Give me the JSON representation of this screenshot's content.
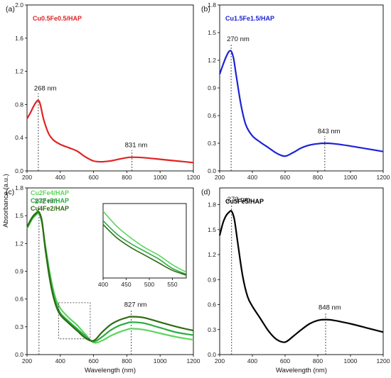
{
  "chart_data": [
    {
      "type": "line",
      "panel": "(a)",
      "xlim": [
        200,
        1200
      ],
      "ylim": [
        0,
        2.0
      ],
      "xticks": [
        200,
        400,
        600,
        800,
        1000,
        1200
      ],
      "yticks": [
        0.0,
        0.4,
        0.8,
        1.2,
        1.6,
        2.0
      ],
      "ytick_labels": [
        "0.0",
        "0.4",
        "0.8",
        "1.2",
        "1.6",
        "2.0"
      ],
      "series": [
        {
          "name": "Cu0.5Fe0.5/HAP",
          "color": "#e32222",
          "x": [
            200,
            220,
            240,
            255,
            268,
            280,
            300,
            330,
            360,
            400,
            450,
            500,
            550,
            600,
            650,
            700,
            750,
            800,
            831,
            900,
            1000,
            1100,
            1200
          ],
          "y": [
            0.63,
            0.7,
            0.78,
            0.83,
            0.85,
            0.8,
            0.62,
            0.45,
            0.37,
            0.32,
            0.28,
            0.24,
            0.17,
            0.12,
            0.11,
            0.12,
            0.14,
            0.16,
            0.165,
            0.16,
            0.14,
            0.12,
            0.1
          ]
        }
      ],
      "annotations": [
        {
          "text": "268 nm",
          "x": 268,
          "y": 0.85
        },
        {
          "text": "831 nm",
          "x": 831,
          "y": 0.165
        }
      ]
    },
    {
      "type": "line",
      "panel": "(b)",
      "xlim": [
        200,
        1200
      ],
      "ylim": [
        0,
        1.8
      ],
      "xticks": [
        200,
        400,
        600,
        800,
        1000,
        1200
      ],
      "yticks": [
        0.0,
        0.3,
        0.6,
        0.9,
        1.2,
        1.5,
        1.8
      ],
      "ytick_labels": [
        "0.0",
        "0.3",
        "0.6",
        "0.9",
        "1.2",
        "1.5",
        "1.8"
      ],
      "series": [
        {
          "name": "Cu1.5Fe1.5/HAP",
          "color": "#1c22d6",
          "x": [
            200,
            220,
            240,
            255,
            270,
            285,
            300,
            330,
            360,
            400,
            450,
            500,
            550,
            600,
            650,
            700,
            750,
            800,
            843,
            900,
            1000,
            1100,
            1200
          ],
          "y": [
            1.05,
            1.15,
            1.24,
            1.29,
            1.3,
            1.22,
            1.05,
            0.72,
            0.5,
            0.38,
            0.31,
            0.25,
            0.19,
            0.16,
            0.2,
            0.25,
            0.28,
            0.295,
            0.3,
            0.295,
            0.27,
            0.24,
            0.21
          ]
        }
      ],
      "annotations": [
        {
          "text": "270 nm",
          "x": 270,
          "y": 1.3
        },
        {
          "text": "843 nm",
          "x": 843,
          "y": 0.3
        }
      ]
    },
    {
      "type": "line",
      "panel": "(c)",
      "xlim": [
        200,
        1200
      ],
      "ylim": [
        0,
        1.8
      ],
      "xticks": [
        200,
        400,
        600,
        800,
        1000,
        1200
      ],
      "yticks": [
        0.0,
        0.3,
        0.6,
        0.9,
        1.2,
        1.5,
        1.8
      ],
      "ytick_labels": [
        "0.0",
        "0.3",
        "0.6",
        "0.9",
        "1.2",
        "1.5",
        "1.8"
      ],
      "xlabel": "Wavelength (nm)",
      "series": [
        {
          "name": "Cu2Fe4/HAP",
          "color": "#5cd65c",
          "x": [
            200,
            230,
            255,
            272,
            290,
            310,
            340,
            370,
            400,
            450,
            500,
            550,
            600,
            650,
            700,
            750,
            800,
            827,
            900,
            1000,
            1100,
            1200
          ],
          "y": [
            1.36,
            1.46,
            1.51,
            1.52,
            1.42,
            1.18,
            0.85,
            0.62,
            0.5,
            0.4,
            0.32,
            0.22,
            0.13,
            0.15,
            0.2,
            0.24,
            0.27,
            0.28,
            0.27,
            0.23,
            0.19,
            0.16
          ]
        },
        {
          "name": "Cu3Fe3/HAP",
          "color": "#2bab42",
          "x": [
            200,
            230,
            255,
            272,
            290,
            310,
            340,
            370,
            400,
            450,
            500,
            550,
            600,
            650,
            700,
            750,
            800,
            827,
            900,
            1000,
            1100,
            1200
          ],
          "y": [
            1.37,
            1.47,
            1.52,
            1.53,
            1.43,
            1.16,
            0.82,
            0.58,
            0.45,
            0.36,
            0.28,
            0.2,
            0.14,
            0.19,
            0.26,
            0.31,
            0.34,
            0.35,
            0.34,
            0.29,
            0.24,
            0.21
          ]
        },
        {
          "name": "Cu4Fe2/HAP",
          "color": "#2f6b12",
          "x": [
            200,
            230,
            255,
            272,
            290,
            310,
            340,
            370,
            400,
            450,
            500,
            550,
            600,
            650,
            700,
            750,
            800,
            827,
            900,
            1000,
            1100,
            1200
          ],
          "y": [
            1.38,
            1.48,
            1.53,
            1.54,
            1.44,
            1.14,
            0.78,
            0.55,
            0.43,
            0.34,
            0.26,
            0.18,
            0.15,
            0.24,
            0.32,
            0.37,
            0.4,
            0.41,
            0.4,
            0.35,
            0.3,
            0.26
          ]
        }
      ],
      "annotations": [
        {
          "text": "272 nm",
          "x": 272,
          "y": 1.53
        },
        {
          "text": "827 nm",
          "x": 827,
          "y": 0.41
        }
      ],
      "zoom_box": {
        "xlim": [
          390,
          580
        ],
        "ylim": [
          0.17,
          0.56
        ]
      },
      "inset": {
        "xlim": [
          400,
          580
        ],
        "xticks": [
          400,
          450,
          500,
          550
        ],
        "series": [
          {
            "name": "Cu2Fe4/HAP",
            "color": "#5cd65c",
            "x": [
              400,
              430,
              460,
              490,
              520,
              550,
              580
            ],
            "y": [
              0.52,
              0.44,
              0.38,
              0.33,
              0.29,
              0.24,
              0.2
            ]
          },
          {
            "name": "Cu3Fe3/HAP",
            "color": "#2bab42",
            "x": [
              400,
              430,
              460,
              490,
              520,
              550,
              580
            ],
            "y": [
              0.47,
              0.4,
              0.35,
              0.31,
              0.27,
              0.22,
              0.19
            ]
          },
          {
            "name": "Cu4Fe2/HAP",
            "color": "#2f6b12",
            "x": [
              400,
              430,
              460,
              490,
              520,
              550,
              580
            ],
            "y": [
              0.45,
              0.38,
              0.33,
              0.29,
              0.25,
              0.21,
              0.185
            ]
          }
        ]
      }
    },
    {
      "type": "line",
      "panel": "(d)",
      "xlim": [
        200,
        1200
      ],
      "ylim": [
        0,
        2.0
      ],
      "xticks": [
        200,
        400,
        600,
        800,
        1000,
        1200
      ],
      "yticks": [
        0.0,
        0.3,
        0.6,
        0.9,
        1.2,
        1.5,
        1.8
      ],
      "ytick_labels": [
        "0.0",
        "0.3",
        "0.6",
        "0.9",
        "1.2",
        "1.5",
        "1.8"
      ],
      "xlabel": "Wavelength (nm)",
      "series": [
        {
          "name": "Cu5Fe5/HAP",
          "color": "#000000",
          "x": [
            200,
            220,
            240,
            258,
            273,
            290,
            310,
            340,
            370,
            400,
            450,
            500,
            550,
            600,
            650,
            700,
            750,
            800,
            848,
            900,
            1000,
            1100,
            1200
          ],
          "y": [
            1.43,
            1.58,
            1.67,
            1.71,
            1.72,
            1.62,
            1.35,
            0.95,
            0.7,
            0.58,
            0.43,
            0.28,
            0.18,
            0.15,
            0.22,
            0.3,
            0.37,
            0.41,
            0.42,
            0.41,
            0.37,
            0.32,
            0.27
          ]
        }
      ],
      "annotations": [
        {
          "text": "273 nm",
          "x": 273,
          "y": 1.72
        },
        {
          "text": "848 nm",
          "x": 848,
          "y": 0.42
        }
      ]
    }
  ],
  "ylabel": "Absorbance (a.u.)"
}
